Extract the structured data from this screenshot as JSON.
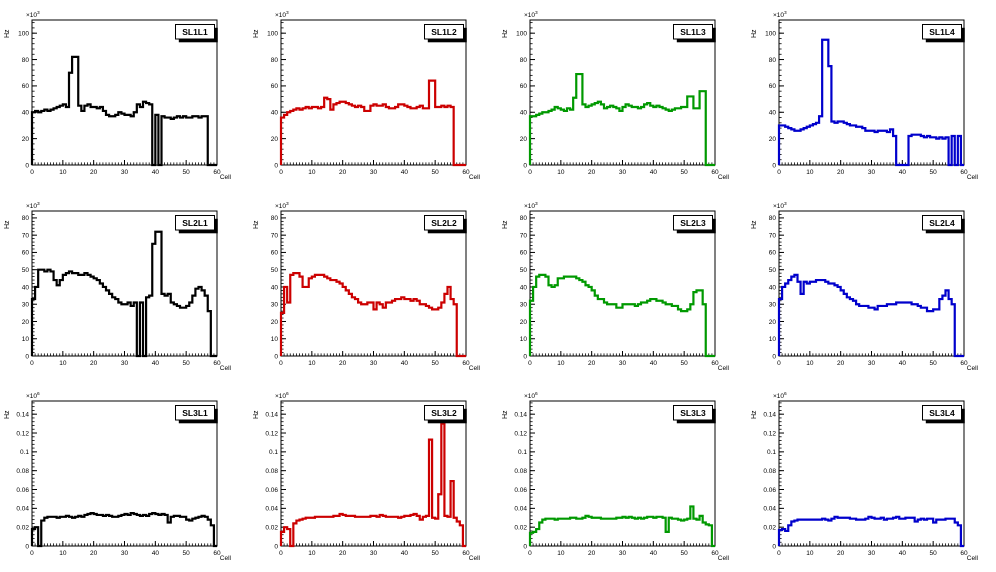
{
  "page": {
    "background": "#ffffff"
  },
  "chart_data": [
    {
      "type": "histogram",
      "title": "SL1L1",
      "color": "#000000",
      "ylabel": "Hz",
      "xlabel": "Cell",
      "scale_label": "×10",
      "scale_exponent": "3",
      "xlim": [
        0,
        60
      ],
      "ylim": [
        0,
        110
      ],
      "x_ticks": [
        0,
        10,
        20,
        30,
        40,
        50,
        60
      ],
      "y_ticks": [
        0,
        20,
        40,
        60,
        80,
        100
      ],
      "y_minor_step": 4,
      "values": [
        40,
        41,
        40,
        41,
        42,
        41,
        42,
        43,
        44,
        45,
        46,
        44,
        70,
        82,
        82,
        45,
        41,
        45,
        46,
        44,
        44,
        43,
        44,
        41,
        38,
        37,
        37,
        38,
        40,
        39,
        38,
        38,
        37,
        40,
        46,
        44,
        48,
        47,
        46,
        0,
        38,
        0,
        37,
        36,
        36,
        35,
        36,
        37,
        36,
        37,
        36,
        36,
        37,
        37,
        36,
        37,
        37,
        0,
        0,
        0
      ]
    },
    {
      "type": "histogram",
      "title": "SL1L2",
      "color": "#cc0000",
      "ylabel": "Hz",
      "xlabel": "Cell",
      "scale_label": "×10",
      "scale_exponent": "3",
      "xlim": [
        0,
        60
      ],
      "ylim": [
        0,
        110
      ],
      "x_ticks": [
        0,
        10,
        20,
        30,
        40,
        50,
        60
      ],
      "y_ticks": [
        0,
        20,
        40,
        60,
        80,
        100
      ],
      "y_minor_step": 4,
      "values": [
        36,
        38,
        40,
        41,
        42,
        43,
        42,
        43,
        44,
        43,
        44,
        44,
        43,
        44,
        51,
        50,
        42,
        46,
        47,
        48,
        48,
        47,
        46,
        45,
        44,
        45,
        44,
        41,
        41,
        45,
        46,
        45,
        45,
        46,
        44,
        43,
        43,
        44,
        46,
        46,
        45,
        44,
        43,
        43,
        44,
        45,
        43,
        43,
        64,
        64,
        44,
        44,
        45,
        44,
        45,
        44,
        0,
        0,
        0,
        0
      ]
    },
    {
      "type": "histogram",
      "title": "SL1L3",
      "color": "#009900",
      "ylabel": "Hz",
      "xlabel": "Cell",
      "scale_label": "×10",
      "scale_exponent": "3",
      "xlim": [
        0,
        60
      ],
      "ylim": [
        0,
        110
      ],
      "x_ticks": [
        0,
        10,
        20,
        30,
        40,
        50,
        60
      ],
      "y_ticks": [
        0,
        20,
        40,
        60,
        80,
        100
      ],
      "y_minor_step": 4,
      "values": [
        37,
        37,
        38,
        39,
        40,
        40,
        41,
        42,
        44,
        43,
        42,
        41,
        43,
        42,
        51,
        69,
        69,
        46,
        44,
        45,
        46,
        47,
        48,
        46,
        43,
        44,
        45,
        44,
        43,
        41,
        44,
        46,
        45,
        44,
        44,
        43,
        44,
        46,
        47,
        45,
        44,
        45,
        44,
        43,
        42,
        41,
        42,
        43,
        43,
        44,
        44,
        52,
        52,
        43,
        43,
        56,
        56,
        0,
        0,
        0
      ]
    },
    {
      "type": "histogram",
      "title": "SL1L4",
      "color": "#0000cc",
      "ylabel": "Hz",
      "xlabel": "Cell",
      "scale_label": "×10",
      "scale_exponent": "3",
      "xlim": [
        0,
        60
      ],
      "ylim": [
        0,
        110
      ],
      "x_ticks": [
        0,
        10,
        20,
        30,
        40,
        50,
        60
      ],
      "y_ticks": [
        0,
        20,
        40,
        60,
        80,
        100
      ],
      "y_minor_step": 4,
      "values": [
        30,
        30,
        29,
        28,
        27,
        26,
        26,
        27,
        28,
        29,
        30,
        31,
        32,
        37,
        95,
        95,
        75,
        33,
        32,
        33,
        33,
        32,
        31,
        30,
        30,
        29,
        29,
        28,
        26,
        26,
        26,
        25,
        26,
        26,
        26,
        25,
        27,
        22,
        0,
        0,
        0,
        0,
        22,
        23,
        23,
        23,
        22,
        21,
        22,
        21,
        21,
        20,
        21,
        20,
        21,
        0,
        22,
        0,
        22,
        0
      ]
    },
    {
      "type": "histogram",
      "title": "SL2L1",
      "color": "#000000",
      "ylabel": "Hz",
      "xlabel": "Cell",
      "scale_label": "×10",
      "scale_exponent": "3",
      "xlim": [
        0,
        60
      ],
      "ylim": [
        0,
        84
      ],
      "x_ticks": [
        0,
        10,
        20,
        30,
        40,
        50,
        60
      ],
      "y_ticks": [
        0,
        10,
        20,
        30,
        40,
        50,
        60,
        70,
        80
      ],
      "y_minor_step": 2,
      "values": [
        33,
        40,
        50,
        50,
        49,
        50,
        49,
        44,
        41,
        44,
        47,
        48,
        49,
        48,
        48,
        47,
        47,
        48,
        47,
        46,
        45,
        44,
        42,
        40,
        38,
        36,
        34,
        33,
        31,
        30,
        30,
        31,
        29,
        31,
        0,
        31,
        0,
        34,
        35,
        65,
        72,
        72,
        36,
        35,
        36,
        31,
        30,
        29,
        28,
        28,
        29,
        31,
        35,
        39,
        40,
        38,
        35,
        26,
        0,
        0
      ]
    },
    {
      "type": "histogram",
      "title": "SL2L2",
      "color": "#cc0000",
      "ylabel": "Hz",
      "xlabel": "Cell",
      "scale_label": "×10",
      "scale_exponent": "3",
      "xlim": [
        0,
        60
      ],
      "ylim": [
        0,
        84
      ],
      "x_ticks": [
        0,
        10,
        20,
        30,
        40,
        50,
        60
      ],
      "y_ticks": [
        0,
        10,
        20,
        30,
        40,
        50,
        60,
        70,
        80
      ],
      "y_minor_step": 2,
      "values": [
        25,
        40,
        31,
        47,
        48,
        48,
        46,
        40,
        40,
        45,
        46,
        47,
        47,
        47,
        46,
        45,
        44,
        44,
        43,
        42,
        40,
        38,
        36,
        34,
        33,
        31,
        30,
        30,
        31,
        31,
        27,
        31,
        30,
        28,
        31,
        31,
        32,
        33,
        33,
        34,
        33,
        33,
        32,
        33,
        32,
        30,
        30,
        29,
        28,
        27,
        27,
        28,
        31,
        36,
        40,
        33,
        30,
        0,
        0,
        0
      ]
    },
    {
      "type": "histogram",
      "title": "SL2L3",
      "color": "#009900",
      "ylabel": "Hz",
      "xlabel": "Cell",
      "scale_label": "×10",
      "scale_exponent": "3",
      "xlim": [
        0,
        60
      ],
      "ylim": [
        0,
        84
      ],
      "x_ticks": [
        0,
        10,
        20,
        30,
        40,
        50,
        60
      ],
      "y_ticks": [
        0,
        10,
        20,
        30,
        40,
        50,
        60,
        70,
        80
      ],
      "y_minor_step": 2,
      "values": [
        32,
        40,
        46,
        47,
        47,
        46,
        41,
        40,
        41,
        45,
        45,
        46,
        46,
        46,
        46,
        45,
        44,
        43,
        41,
        40,
        38,
        35,
        33,
        33,
        31,
        30,
        30,
        30,
        28,
        28,
        30,
        30,
        30,
        30,
        29,
        30,
        31,
        31,
        32,
        33,
        33,
        32,
        32,
        31,
        30,
        30,
        29,
        29,
        27,
        26,
        26,
        27,
        30,
        37,
        38,
        38,
        30,
        0,
        0,
        0
      ]
    },
    {
      "type": "histogram",
      "title": "SL2L4",
      "color": "#0000cc",
      "ylabel": "Hz",
      "xlabel": "Cell",
      "scale_label": "×10",
      "scale_exponent": "3",
      "xlim": [
        0,
        60
      ],
      "ylim": [
        0,
        84
      ],
      "x_ticks": [
        0,
        10,
        20,
        30,
        40,
        50,
        60
      ],
      "y_ticks": [
        0,
        10,
        20,
        30,
        40,
        50,
        60,
        70,
        80
      ],
      "y_minor_step": 2,
      "values": [
        33,
        40,
        42,
        44,
        46,
        47,
        43,
        36,
        43,
        42,
        43,
        43,
        44,
        44,
        44,
        43,
        42,
        42,
        41,
        40,
        38,
        36,
        34,
        33,
        32,
        30,
        29,
        29,
        29,
        28,
        28,
        27,
        29,
        29,
        29,
        30,
        30,
        30,
        31,
        31,
        31,
        31,
        31,
        30,
        30,
        29,
        28,
        28,
        26,
        26,
        27,
        27,
        33,
        35,
        38,
        33,
        30,
        0,
        0,
        0
      ]
    },
    {
      "type": "histogram",
      "title": "SL3L1",
      "color": "#000000",
      "ylabel": "Hz",
      "xlabel": "Cell",
      "scale_label": "×10",
      "scale_exponent": "6",
      "xlim": [
        0,
        60
      ],
      "ylim": [
        0,
        0.154
      ],
      "x_ticks": [
        0,
        10,
        20,
        30,
        40,
        50,
        60
      ],
      "y_ticks": [
        0,
        0.02,
        0.04,
        0.06,
        0.08,
        0.1,
        0.12,
        0.14
      ],
      "y_minor_step": 0.004,
      "values": [
        0.018,
        0.02,
        0,
        0.027,
        0.03,
        0.031,
        0.031,
        0.031,
        0.03,
        0.031,
        0.031,
        0.032,
        0.031,
        0.03,
        0.031,
        0.032,
        0.031,
        0.033,
        0.034,
        0.035,
        0.034,
        0.033,
        0.033,
        0.032,
        0.033,
        0.032,
        0.031,
        0.031,
        0.032,
        0.033,
        0.034,
        0.033,
        0.035,
        0.034,
        0.033,
        0.032,
        0.033,
        0.032,
        0.034,
        0.035,
        0.034,
        0.033,
        0.034,
        0.033,
        0.025,
        0.031,
        0.032,
        0.032,
        0.031,
        0.031,
        0.028,
        0.027,
        0.029,
        0.03,
        0.031,
        0.032,
        0.031,
        0.028,
        0.022,
        0
      ]
    },
    {
      "type": "histogram",
      "title": "SL3L2",
      "color": "#cc0000",
      "ylabel": "Hz",
      "xlabel": "Cell",
      "scale_label": "×10",
      "scale_exponent": "6",
      "xlim": [
        0,
        60
      ],
      "ylim": [
        0,
        0.154
      ],
      "x_ticks": [
        0,
        10,
        20,
        30,
        40,
        50,
        60
      ],
      "y_ticks": [
        0,
        0.02,
        0.04,
        0.06,
        0.08,
        0.1,
        0.12,
        0.14
      ],
      "y_minor_step": 0.004,
      "values": [
        0.015,
        0.02,
        0.018,
        0,
        0.024,
        0.027,
        0.028,
        0.029,
        0.03,
        0.03,
        0.03,
        0.031,
        0.031,
        0.031,
        0.031,
        0.031,
        0.031,
        0.032,
        0.032,
        0.034,
        0.033,
        0.032,
        0.032,
        0.032,
        0.031,
        0.031,
        0.031,
        0.031,
        0.031,
        0.032,
        0.032,
        0.031,
        0.033,
        0.032,
        0.031,
        0.031,
        0.031,
        0.031,
        0.03,
        0.031,
        0.032,
        0.032,
        0.033,
        0.034,
        0.032,
        0.028,
        0.031,
        0.032,
        0.113,
        0.03,
        0.029,
        0.055,
        0.13,
        0.032,
        0.031,
        0.069,
        0.03,
        0.026,
        0.022,
        0
      ]
    },
    {
      "type": "histogram",
      "title": "SL3L3",
      "color": "#009900",
      "ylabel": "Hz",
      "xlabel": "Cell",
      "scale_label": "×10",
      "scale_exponent": "6",
      "xlim": [
        0,
        60
      ],
      "ylim": [
        0,
        0.154
      ],
      "x_ticks": [
        0,
        10,
        20,
        30,
        40,
        50,
        60
      ],
      "y_ticks": [
        0,
        0.02,
        0.04,
        0.06,
        0.08,
        0.1,
        0.12,
        0.14
      ],
      "y_minor_step": 0.004,
      "values": [
        0.014,
        0.015,
        0.018,
        0.025,
        0.028,
        0.029,
        0.029,
        0.029,
        0.028,
        0.029,
        0.029,
        0.029,
        0.029,
        0.03,
        0.03,
        0.029,
        0.029,
        0.03,
        0.032,
        0.031,
        0.03,
        0.03,
        0.03,
        0.029,
        0.029,
        0.029,
        0.029,
        0.029,
        0.03,
        0.03,
        0.031,
        0.03,
        0.031,
        0.03,
        0.029,
        0.03,
        0.029,
        0.03,
        0.031,
        0.031,
        0.03,
        0.031,
        0.031,
        0.03,
        0.015,
        0.03,
        0.029,
        0.029,
        0.028,
        0.027,
        0.028,
        0.029,
        0.042,
        0.029,
        0.028,
        0.032,
        0.025,
        0.023,
        0.022,
        0
      ]
    },
    {
      "type": "histogram",
      "title": "SL3L4",
      "color": "#0000cc",
      "ylabel": "Hz",
      "xlabel": "Cell",
      "scale_label": "×10",
      "scale_exponent": "6",
      "xlim": [
        0,
        60
      ],
      "ylim": [
        0,
        0.154
      ],
      "x_ticks": [
        0,
        10,
        20,
        30,
        40,
        50,
        60
      ],
      "y_ticks": [
        0,
        0.02,
        0.04,
        0.06,
        0.08,
        0.1,
        0.12,
        0.14
      ],
      "y_minor_step": 0.004,
      "values": [
        0.017,
        0.018,
        0.016,
        0.022,
        0.026,
        0.027,
        0.028,
        0.028,
        0.028,
        0.028,
        0.028,
        0.028,
        0.028,
        0.028,
        0.029,
        0.028,
        0.027,
        0.029,
        0.031,
        0.03,
        0.03,
        0.03,
        0.03,
        0.029,
        0.029,
        0.028,
        0.028,
        0.028,
        0.029,
        0.031,
        0.03,
        0.029,
        0.029,
        0.03,
        0.028,
        0.029,
        0.029,
        0.03,
        0.031,
        0.029,
        0.029,
        0.03,
        0.03,
        0.03,
        0.026,
        0.028,
        0.029,
        0.028,
        0.029,
        0.029,
        0.025,
        0.028,
        0.028,
        0.028,
        0.029,
        0.029,
        0.029,
        0.025,
        0.022,
        0
      ]
    }
  ]
}
